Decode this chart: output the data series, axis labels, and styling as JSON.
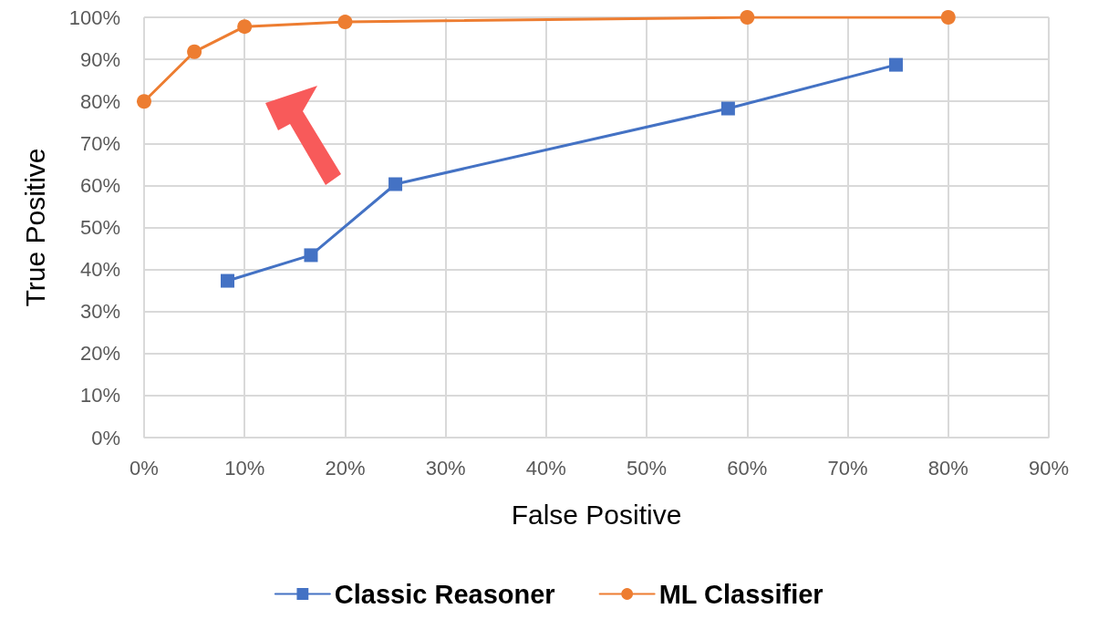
{
  "chart_data": {
    "type": "line",
    "xlabel": "False Positive",
    "ylabel": "True Positive",
    "series": [
      {
        "name": "Classic Reasoner",
        "color": "#4472c4",
        "marker": "square",
        "x": [
          8.3,
          16.6,
          25,
          58.1,
          74.8
        ],
        "values": [
          37.3,
          43.4,
          60.3,
          78.3,
          88.7
        ]
      },
      {
        "name": "ML Classifier",
        "color": "#ed7d31",
        "marker": "circle",
        "x": [
          0,
          5,
          10,
          20,
          60,
          80
        ],
        "values": [
          80,
          91.8,
          97.8,
          98.9,
          100,
          100
        ]
      }
    ],
    "xlim": [
      0,
      90
    ],
    "xticks": [
      {
        "value": 0,
        "label": "0%"
      },
      {
        "value": 10,
        "label": "10%"
      },
      {
        "value": 20,
        "label": "20%"
      },
      {
        "value": 30,
        "label": "30%"
      },
      {
        "value": 40,
        "label": "40%"
      },
      {
        "value": 50,
        "label": "50%"
      },
      {
        "value": 60,
        "label": "60%"
      },
      {
        "value": 70,
        "label": "70%"
      },
      {
        "value": 80,
        "label": "80%"
      },
      {
        "value": 90,
        "label": "90%"
      }
    ],
    "ylim": [
      0,
      100
    ],
    "yticks": [
      {
        "value": 0,
        "label": "0%"
      },
      {
        "value": 10,
        "label": "10%"
      },
      {
        "value": 20,
        "label": "20%"
      },
      {
        "value": 30,
        "label": "30%"
      },
      {
        "value": 40,
        "label": "40%"
      },
      {
        "value": 50,
        "label": "50%"
      },
      {
        "value": 60,
        "label": "60%"
      },
      {
        "value": 70,
        "label": "70%"
      },
      {
        "value": 80,
        "label": "80%"
      },
      {
        "value": 90,
        "label": "90%"
      },
      {
        "value": 100,
        "label": "100%"
      }
    ],
    "grid": true,
    "legend": "bottom",
    "line_style": "solid"
  }
}
